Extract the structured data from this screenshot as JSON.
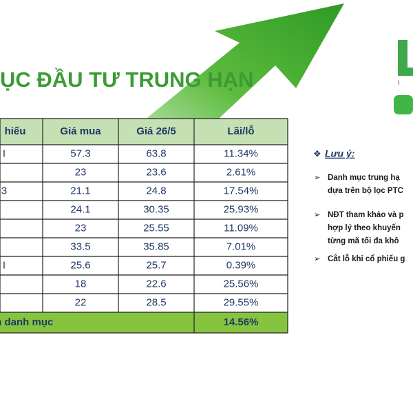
{
  "header": {
    "title": "ỤC ĐẦU TƯ TRUNG HẠN",
    "logo_sub": "I N"
  },
  "table": {
    "columns": [
      "hiếu",
      "Giá mua",
      "Giá 26/5",
      "Lãi/lỗ"
    ],
    "rows": [
      {
        "code": "I",
        "cells": [
          "57.3",
          "63.8",
          "11.34%"
        ]
      },
      {
        "cells": [
          "23",
          "23.6",
          "2.61%"
        ]
      },
      {
        "code": "3",
        "cells": [
          "21.1",
          "24.8",
          "17.54%"
        ]
      },
      {
        "cells": [
          "24.1",
          "30.35",
          "25.93%"
        ]
      },
      {
        "cells": [
          "23",
          "25.55",
          "11.09%"
        ]
      },
      {
        "cells": [
          "33.5",
          "35.85",
          "7.01%"
        ]
      },
      {
        "code": "I",
        "cells": [
          "25.6",
          "25.7",
          "0.39%"
        ]
      },
      {
        "cells": [
          "18",
          "22.6",
          "25.56%"
        ]
      },
      {
        "cells": [
          "22",
          "28.5",
          "29.55%"
        ]
      }
    ],
    "footer": {
      "label": "quân toàn danh mục",
      "value": "14.56%"
    }
  },
  "notes": {
    "heading": "Lưu ý:",
    "items": [
      [
        "Danh mục trung hạ",
        "dựa trên bộ lọc PTC"
      ],
      [
        "NĐT tham khảo và p",
        "hợp lý theo khuyến",
        "từng mã tối đa khô"
      ],
      [
        "Cắt lỗ khi cổ phiếu g"
      ]
    ]
  }
}
